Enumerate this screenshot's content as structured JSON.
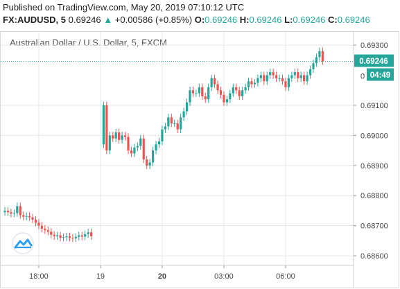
{
  "header": {
    "published": "Published on TradingView.com, May 20, 2019 07:10:12 UTC",
    "symbol": "FX:AUDUSD, 5",
    "last": "0.69246",
    "change_arrow": "▲",
    "change": "+0.00586 (+0.85%)",
    "o_label": "O:",
    "o_value": "0.69246",
    "h_label": "H:",
    "h_value": "0.69246",
    "l_label": "L:",
    "l_value": "0.69246",
    "c_label": "C:",
    "c_value": "0.69246"
  },
  "colors": {
    "up": "#26a69a",
    "down": "#ef5350",
    "grid": "#e6e6e6",
    "price_line": "#26a69a"
  },
  "price_badge": {
    "price": "0.69246",
    "countdown": "04:49",
    "partial_label": "0"
  },
  "chart_data": {
    "type": "candlestick",
    "title": "Australian Dollar / U.S. Dollar, 5, FXCM",
    "xlabel": "",
    "ylabel": "",
    "ylim": [
      0.6858,
      0.6935
    ],
    "y_ticks": [
      "0.69300",
      "0.69100",
      "0.69000",
      "0.68900",
      "0.68800",
      "0.68700",
      "0.68600"
    ],
    "y_tick_values": [
      0.693,
      0.691,
      0.69,
      0.689,
      0.688,
      0.687,
      0.686
    ],
    "x_ticks": [
      {
        "label": "18:00",
        "bold": false,
        "index": 11
      },
      {
        "label": "19",
        "bold": false,
        "index": 31
      },
      {
        "label": "20",
        "bold": true,
        "index": 51
      },
      {
        "label": "03:00",
        "bold": false,
        "index": 71
      },
      {
        "label": "06:00",
        "bold": false,
        "index": 91
      }
    ],
    "x_range": [
      -1,
      108
    ],
    "last_price": 0.69246,
    "closes": [
      0.6875,
      0.68745,
      0.6874,
      0.68742,
      0.68765,
      0.68735,
      0.6873,
      0.68732,
      0.68728,
      0.6872,
      0.6871,
      0.687,
      0.6869,
      0.68685,
      0.6868,
      0.6867,
      0.68665,
      0.68668,
      0.6866,
      0.68662,
      0.68665,
      0.6866,
      0.68658,
      0.68663,
      0.68668,
      0.68664,
      0.68672,
      0.68678,
      0.68665,
      null,
      null,
      null,
      0.691,
      0.6895,
      0.69,
      0.6899,
      0.6901,
      0.68985,
      0.69,
      0.68995,
      0.6895,
      0.6894,
      0.6896,
      0.68965,
      0.6899,
      0.6892,
      0.689,
      0.6891,
      0.6895,
      0.6897,
      0.6898,
      0.6902,
      0.6903,
      0.6906,
      0.6904,
      0.6904,
      0.6902,
      0.6906,
      0.6908,
      0.6911,
      0.6915,
      0.6914,
      0.6914,
      0.6916,
      0.6913,
      0.6912,
      0.6916,
      0.6919,
      0.6917,
      0.6915,
      0.69135,
      0.6911,
      0.6912,
      0.6914,
      0.6916,
      0.6915,
      0.6913,
      0.6915,
      0.6916,
      0.6918,
      0.6917,
      0.69175,
      0.6919,
      0.692,
      0.6918,
      0.692,
      0.6921,
      0.692,
      0.6919,
      0.6919,
      0.6918,
      0.6916,
      0.6919,
      0.692,
      0.6921,
      0.6919,
      0.692,
      0.6918,
      0.692,
      0.6922,
      0.6924,
      0.6926,
      0.6928,
      0.69246
    ],
    "opens": [
      0.68745,
      0.6875,
      0.68745,
      0.6874,
      0.68742,
      0.68765,
      0.68735,
      0.6873,
      0.68732,
      0.68728,
      0.6872,
      0.6871,
      0.687,
      0.6869,
      0.68685,
      0.6868,
      0.6867,
      0.68665,
      0.68668,
      0.6866,
      0.68662,
      0.68665,
      0.6866,
      0.68658,
      0.68663,
      0.68668,
      0.68664,
      0.68672,
      0.68678,
      null,
      null,
      null,
      0.6897,
      0.691,
      0.6895,
      0.69,
      0.6899,
      0.6901,
      0.68985,
      0.69,
      0.68995,
      0.6895,
      0.6894,
      0.6896,
      0.68965,
      0.6899,
      0.6892,
      0.689,
      0.6891,
      0.6895,
      0.6897,
      0.6898,
      0.6902,
      0.6903,
      0.6906,
      0.6904,
      0.6904,
      0.6902,
      0.6906,
      0.6908,
      0.6911,
      0.6915,
      0.6914,
      0.6914,
      0.6916,
      0.6913,
      0.6912,
      0.6916,
      0.6919,
      0.6917,
      0.6915,
      0.69135,
      0.6911,
      0.6912,
      0.6914,
      0.6916,
      0.6915,
      0.6913,
      0.6915,
      0.6916,
      0.6918,
      0.6917,
      0.69175,
      0.6919,
      0.692,
      0.6918,
      0.692,
      0.6921,
      0.692,
      0.6919,
      0.6919,
      0.6918,
      0.6916,
      0.6919,
      0.692,
      0.6921,
      0.6919,
      0.692,
      0.6918,
      0.692,
      0.6922,
      0.6924,
      0.6926,
      0.6928
    ]
  }
}
